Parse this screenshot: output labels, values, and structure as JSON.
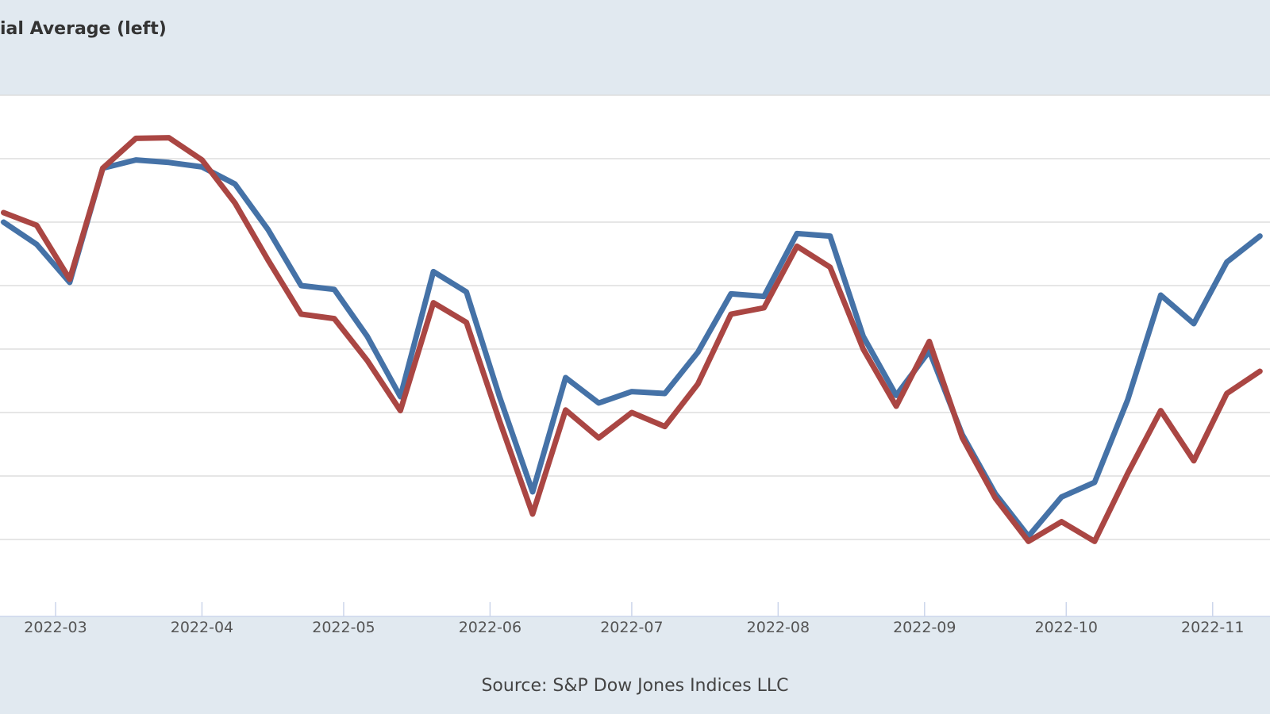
{
  "legend": {
    "label": "ial Average (left)"
  },
  "source": "Source: S&P Dow Jones Indices LLC",
  "colors": {
    "series_1": "#4572a7",
    "series_2": "#aa4643",
    "grid": "#dddddd",
    "plot_bg": "#ffffff",
    "frame_bg": "#e1e9f0",
    "tick_text": "#555555"
  },
  "chart_data": {
    "type": "line",
    "title": "",
    "xlabel": "",
    "ylabel": "",
    "x_axis": "date",
    "x_ticks": [
      "2022-03",
      "2022-04",
      "2022-05",
      "2022-06",
      "2022-07",
      "2022-08",
      "2022-09",
      "2022-10",
      "2022-11"
    ],
    "y_axis": {
      "range": [
        0,
        8
      ],
      "tick_labels_visible": false
    },
    "grid": true,
    "x": [
      "2022-02-18",
      "2022-02-25",
      "2022-03-04",
      "2022-03-11",
      "2022-03-18",
      "2022-03-25",
      "2022-04-01",
      "2022-04-08",
      "2022-04-15",
      "2022-04-22",
      "2022-04-29",
      "2022-05-06",
      "2022-05-13",
      "2022-05-20",
      "2022-05-27",
      "2022-06-03",
      "2022-06-10",
      "2022-06-17",
      "2022-06-24",
      "2022-07-01",
      "2022-07-08",
      "2022-07-15",
      "2022-07-22",
      "2022-07-29",
      "2022-08-05",
      "2022-08-12",
      "2022-08-19",
      "2022-08-26",
      "2022-09-02",
      "2022-09-09",
      "2022-09-16",
      "2022-09-23",
      "2022-09-30",
      "2022-10-07",
      "2022-10-14",
      "2022-10-21",
      "2022-10-28",
      "2022-11-04",
      "2022-11-11"
    ],
    "series": [
      {
        "values": [
          6.0,
          5.65,
          5.05,
          6.85,
          6.98,
          6.94,
          6.87,
          6.6,
          5.88,
          5.0,
          4.94,
          4.2,
          3.25,
          5.22,
          4.9,
          3.25,
          1.75,
          3.55,
          3.15,
          3.33,
          3.3,
          3.95,
          4.87,
          4.83,
          5.82,
          5.78,
          4.2,
          3.27,
          3.97,
          2.65,
          1.72,
          1.05,
          1.67,
          1.9,
          3.2,
          4.85,
          4.4,
          5.37,
          5.78
        ]
      },
      {
        "values": [
          6.15,
          5.95,
          5.1,
          6.85,
          7.32,
          7.33,
          6.98,
          6.3,
          5.4,
          4.55,
          4.48,
          3.82,
          3.03,
          4.73,
          4.42,
          2.87,
          1.4,
          3.04,
          2.6,
          3.0,
          2.78,
          3.45,
          4.55,
          4.65,
          5.62,
          5.29,
          4.0,
          3.1,
          4.12,
          2.6,
          1.65,
          0.97,
          1.28,
          0.97,
          2.04,
          3.03,
          2.24,
          3.3,
          3.65
        ]
      }
    ]
  }
}
